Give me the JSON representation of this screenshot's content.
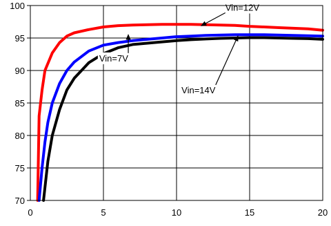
{
  "chart_data": {
    "type": "line",
    "title": "",
    "xlabel": "",
    "ylabel": "",
    "xlim": [
      0,
      20
    ],
    "ylim": [
      70,
      100
    ],
    "grid": true,
    "x_ticks": [
      "0",
      "5",
      "10",
      "15",
      "20"
    ],
    "y_ticks": [
      "70",
      "75",
      "80",
      "85",
      "90",
      "95",
      "100"
    ],
    "series": [
      {
        "name": "Vin=12V",
        "color": "#ff0000",
        "points": [
          [
            0.5,
            70
          ],
          [
            0.6,
            83
          ],
          [
            0.8,
            87
          ],
          [
            1.0,
            90
          ],
          [
            1.5,
            92.7
          ],
          [
            2,
            94.3
          ],
          [
            2.5,
            95.3
          ],
          [
            3,
            95.8
          ],
          [
            4,
            96.3
          ],
          [
            5,
            96.7
          ],
          [
            6,
            96.9
          ],
          [
            7,
            97.0
          ],
          [
            8,
            97.05
          ],
          [
            9,
            97.1
          ],
          [
            10,
            97.1
          ],
          [
            11,
            97.1
          ],
          [
            12,
            97.05
          ],
          [
            13,
            97.0
          ],
          [
            14,
            96.95
          ],
          [
            15,
            96.8
          ],
          [
            16,
            96.7
          ],
          [
            17,
            96.6
          ],
          [
            18,
            96.5
          ],
          [
            19,
            96.4
          ],
          [
            20,
            96.2
          ]
        ]
      },
      {
        "name": "Vin=7V",
        "color": "#0000ff",
        "points": [
          [
            0.6,
            70
          ],
          [
            0.8,
            75
          ],
          [
            1.0,
            79
          ],
          [
            1.2,
            82
          ],
          [
            1.5,
            85
          ],
          [
            2,
            88
          ],
          [
            2.5,
            90
          ],
          [
            3,
            91.3
          ],
          [
            4,
            93
          ],
          [
            5,
            93.9
          ],
          [
            6,
            94.3
          ],
          [
            7,
            94.6
          ],
          [
            8,
            94.8
          ],
          [
            9,
            95.0
          ],
          [
            10,
            95.2
          ],
          [
            11,
            95.3
          ],
          [
            12,
            95.4
          ],
          [
            13,
            95.45
          ],
          [
            14,
            95.5
          ],
          [
            15,
            95.5
          ],
          [
            16,
            95.5
          ],
          [
            17,
            95.45
          ],
          [
            18,
            95.4
          ],
          [
            19,
            95.35
          ],
          [
            20,
            95.3
          ]
        ]
      },
      {
        "name": "Vin=14V",
        "color": "#000000",
        "points": [
          [
            0.9,
            70
          ],
          [
            1.0,
            72
          ],
          [
            1.2,
            76
          ],
          [
            1.5,
            80
          ],
          [
            2,
            84
          ],
          [
            2.5,
            87
          ],
          [
            3,
            88.8
          ],
          [
            4,
            91.2
          ],
          [
            5,
            92.6
          ],
          [
            6,
            93.5
          ],
          [
            7,
            94.0
          ],
          [
            8,
            94.2
          ],
          [
            9,
            94.4
          ],
          [
            10,
            94.6
          ],
          [
            11,
            94.75
          ],
          [
            12,
            94.85
          ],
          [
            13,
            94.95
          ],
          [
            14,
            95.0
          ],
          [
            15,
            95.05
          ],
          [
            16,
            95.05
          ],
          [
            17,
            95.0
          ],
          [
            18,
            94.95
          ],
          [
            19,
            94.9
          ],
          [
            20,
            94.8
          ]
        ]
      }
    ],
    "annotations": [
      {
        "text": "Vin=12V",
        "target": [
          11.7,
          96.9
        ],
        "label_at": [
          14.5,
          99.2
        ]
      },
      {
        "text": "Vin=7V",
        "target": [
          6.7,
          95.5
        ],
        "label_at": [
          5.7,
          91.4
        ]
      },
      {
        "text": "Vin=14V",
        "target": [
          14.2,
          95.3
        ],
        "label_at": [
          11.5,
          86.5
        ]
      }
    ]
  }
}
